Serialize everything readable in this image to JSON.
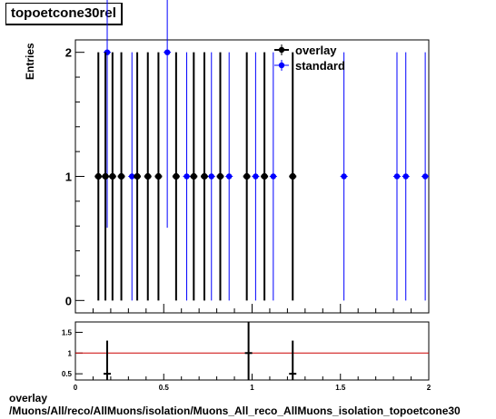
{
  "title": "topoetcone30rel",
  "footer": {
    "line1": "overlay",
    "line2": "/Muons/All/reco/AllMuons/isolation/Muons_All_reco_AllMuons_isolation_topoetcone30"
  },
  "chart_data": [
    {
      "type": "scatter",
      "title": "topoetcone30rel",
      "ylabel": "Entries",
      "xlim": [
        0,
        2
      ],
      "ylim": [
        -0.1,
        2.1
      ],
      "yticks": [
        0,
        1,
        2
      ],
      "legend": {
        "placement": "top-right",
        "entries": [
          "overlay",
          "standard"
        ]
      },
      "series": [
        {
          "name": "overlay",
          "color": "#000000",
          "x": [
            0.13,
            0.17,
            0.21,
            0.26,
            0.35,
            0.41,
            0.47,
            0.57,
            0.67,
            0.73,
            0.82,
            0.97,
            1.07,
            1.23
          ],
          "y": [
            1,
            1,
            1,
            1,
            1,
            1,
            1,
            1,
            1,
            1,
            1,
            1,
            1,
            1
          ]
        },
        {
          "name": "standard",
          "color": "#0000ff",
          "x": [
            0.18,
            0.32,
            0.52,
            0.63,
            0.77,
            0.87,
            1.02,
            1.12,
            1.52,
            1.82,
            1.87,
            1.98
          ],
          "y": [
            2,
            1,
            2,
            1,
            1,
            1,
            1,
            1,
            1,
            1,
            1,
            1
          ]
        }
      ]
    },
    {
      "type": "scatter",
      "xlim": [
        0,
        2
      ],
      "ylim": [
        0.35,
        1.75
      ],
      "xticks": [
        0,
        0.5,
        1,
        1.5,
        2
      ],
      "xtick_labels": [
        "0",
        "0.5",
        "1",
        "1.5",
        "2"
      ],
      "yticks": [
        0.5,
        1,
        1.5
      ],
      "ytick_labels": [
        "0.5",
        "1",
        "1.5"
      ],
      "reference_line": {
        "y": 1,
        "color": "#cc0000"
      },
      "series": [
        {
          "color": "#000000",
          "x": [
            0.18,
            0.98,
            1.23
          ],
          "y": [
            0.5,
            1.0,
            0.5
          ]
        }
      ]
    }
  ]
}
